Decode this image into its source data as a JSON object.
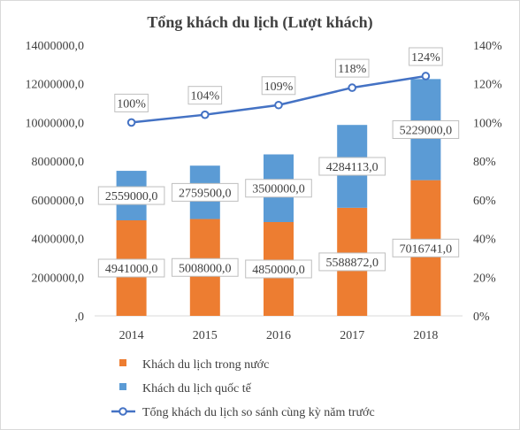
{
  "chart_data": {
    "type": "bar",
    "stacked": true,
    "title": "Tổng khách  du lịch (Lượt khách)",
    "categories": [
      "2014",
      "2015",
      "2016",
      "2017",
      "2018"
    ],
    "series": [
      {
        "name": "Khách du lịch trong nước",
        "type": "bar",
        "axis": "left",
        "color": "#ed7d31",
        "values": [
          4941000,
          5008000,
          4850000,
          5588872,
          7016741
        ],
        "labels": [
          "4941000,0",
          "5008000,0",
          "4850000,0",
          "5588872,0",
          "7016741,0"
        ]
      },
      {
        "name": "Khách du lịch quốc tế",
        "type": "bar",
        "axis": "left",
        "color": "#5b9bd5",
        "values": [
          2559000,
          2759500,
          3500000,
          4284113,
          5229000
        ],
        "labels": [
          "2559000,0",
          "2759500,0",
          "3500000,0",
          "4284113,0",
          "5229000,0"
        ]
      },
      {
        "name": "Tổng khách du lịch so sánh cùng kỳ năm trước",
        "type": "line",
        "axis": "right",
        "color": "#4472c4",
        "values": [
          100,
          104,
          109,
          118,
          124
        ],
        "labels": [
          "100%",
          "104%",
          "109%",
          "118%",
          "124%"
        ]
      }
    ],
    "y_left": {
      "min": 0,
      "max": 14000000,
      "ticks": [
        0,
        2000000,
        4000000,
        6000000,
        8000000,
        10000000,
        12000000,
        14000000
      ],
      "tick_labels": [
        ",0",
        "2000000,0",
        "4000000,0",
        "6000000,0",
        "8000000,0",
        "10000000,0",
        "12000000,0",
        "14000000,0"
      ]
    },
    "y_right": {
      "min": 0,
      "max": 140,
      "ticks": [
        0,
        20,
        40,
        60,
        80,
        100,
        120,
        140
      ],
      "tick_labels": [
        "0%",
        "20%",
        "40%",
        "60%",
        "80%",
        "100%",
        "120%",
        "140%"
      ]
    },
    "grid": false,
    "legend_position": "bottom"
  }
}
